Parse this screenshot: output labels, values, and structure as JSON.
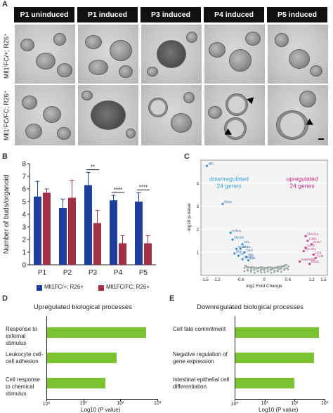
{
  "panel_letters": {
    "a": "A",
    "b": "B",
    "c": "C",
    "d": "D",
    "e": "E"
  },
  "panel_a": {
    "columns": [
      "P1 uninduced",
      "P1 induced",
      "P3 induced",
      "P4 induced",
      "P5 induced"
    ],
    "rows": [
      "Mll1⁽FC/+; R26⁺",
      "Mll1⁽FC/FC; R26⁺"
    ]
  },
  "chart_data": [
    {
      "type": "bar",
      "panel": "B",
      "categories": [
        "P1",
        "P2",
        "P3",
        "P4",
        "P5"
      ],
      "series": [
        {
          "name": "Mll1FC/+; R26+",
          "values": [
            5.4,
            4.5,
            6.3,
            5.1,
            5.0
          ],
          "errors": [
            1.2,
            0.7,
            1.0,
            0.4,
            0.7
          ],
          "color": "#1f3f9f"
        },
        {
          "name": "Mll1FC/FC; R26+",
          "values": [
            5.7,
            5.3,
            3.3,
            1.7,
            1.7
          ],
          "errors": [
            0.3,
            1.4,
            1.0,
            0.6,
            0.6
          ],
          "color": "#a23046"
        }
      ],
      "significance": [
        "",
        "",
        "**",
        "****",
        "****"
      ],
      "ylabel": "Number of buds/organoid",
      "ylim": [
        0,
        8
      ],
      "yticks": [
        0,
        1,
        2,
        3,
        4,
        5,
        6,
        7,
        8
      ]
    },
    {
      "type": "scatter",
      "panel": "C",
      "xlabel": "log2 Fold Change",
      "ylabel": "-log10 p-value",
      "xlim": [
        -1.6,
        1.6
      ],
      "ylim": [
        0,
        5
      ],
      "xticks": [
        -1.5,
        -1.2,
        -0.6,
        0,
        0.6,
        1.2,
        1.5
      ],
      "xtick_labels": [
        "-1.5",
        "-1.2",
        "-0.6",
        "0",
        "0.6",
        "1.2",
        "1.5"
      ],
      "yticks": [
        1,
        2,
        3,
        4
      ],
      "annotations": {
        "down": "downregulated\n24 genes",
        "up": "upregulated\n24 genes"
      },
      "down_points": [
        {
          "x": -1.45,
          "y": 4.75,
          "label": "Mll1"
        },
        {
          "x": -1.05,
          "y": 3.1,
          "label": "Ifitm5"
        },
        {
          "x": -0.85,
          "y": 1.85,
          "label": "Eefm1"
        },
        {
          "x": -0.8,
          "y": 1.55,
          "label": "Zfp182"
        },
        {
          "x": -0.55,
          "y": 1.35,
          "label": "Vit1"
        },
        {
          "x": -0.6,
          "y": 1.15,
          "label": "Greb1"
        },
        {
          "x": -0.7,
          "y": 1.15,
          "label": "Nr1d1"
        },
        {
          "x": -0.5,
          "y": 1.0,
          "label": "Ssp2"
        },
        {
          "x": -0.75,
          "y": 0.95,
          "label": "Dbp"
        },
        {
          "x": -0.65,
          "y": 0.85,
          "label": "Lpl"
        },
        {
          "x": -0.45,
          "y": 0.8,
          "label": "Hbb"
        },
        {
          "x": -0.55,
          "y": 0.7,
          "label": "Sycp3"
        },
        {
          "x": -0.4,
          "y": 0.65,
          "label": "Ddit"
        }
      ],
      "up_points": [
        {
          "x": 1.05,
          "y": 1.7,
          "label": "Clec11a"
        },
        {
          "x": 1.1,
          "y": 1.5,
          "label": "Cdh1"
        },
        {
          "x": 1.2,
          "y": 1.35,
          "label": "Ccl17"
        },
        {
          "x": 1.05,
          "y": 1.2,
          "label": "Cd74"
        },
        {
          "x": 1.0,
          "y": 1.05,
          "label": "H2-Ab1"
        },
        {
          "x": 1.25,
          "y": 0.9,
          "label": "Lyz1"
        },
        {
          "x": 1.3,
          "y": 0.75,
          "label": "Ccl6"
        },
        {
          "x": 0.9,
          "y": 0.6,
          "label": "AI467606"
        },
        {
          "x": 1.15,
          "y": 0.5,
          "label": "Krt20"
        }
      ]
    },
    {
      "type": "bar",
      "panel": "D",
      "orientation": "horizontal",
      "title": "Upregulated biological processes",
      "categories": [
        "Response to external stimulus",
        "Leukocyte cell-cell adhesion",
        "Cell response to chemical stimulus"
      ],
      "values": [
        500,
        80,
        40
      ],
      "xlabel": "Log10 (P value)",
      "xscale": "log",
      "xlim": [
        1,
        1000
      ],
      "xtick_labels": [
        "10⁰",
        "10¹",
        "10²",
        "10³"
      ]
    },
    {
      "type": "bar",
      "panel": "E",
      "orientation": "horizontal",
      "title": "Downregulated biological processes",
      "categories": [
        "Cell fate commitment",
        "Negative regulation of gene expression",
        "Intestinal epithelial cell differentiation"
      ],
      "values": [
        650,
        450,
        100
      ],
      "xlabel": "Log10 (P value)",
      "xscale": "log",
      "xlim": [
        1,
        1000
      ],
      "xtick_labels": [
        "10⁰",
        "10¹",
        "10²",
        "10³"
      ]
    }
  ]
}
